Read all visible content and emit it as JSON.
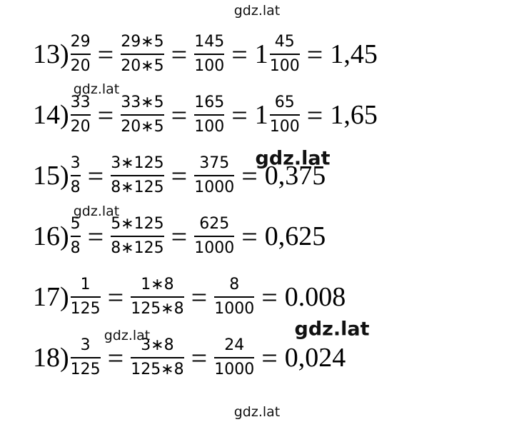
{
  "watermarks": [
    "gdz.lat",
    "gdz.lat",
    "gdz.lat",
    "gdz.lat",
    "gdz.lat",
    "gdz.lat",
    "gdz.lat"
  ],
  "equals": "=",
  "rows": [
    {
      "label": "13)",
      "terms": [
        {
          "num": "29",
          "den": "20"
        },
        {
          "num": "29∗5",
          "den": "20∗5"
        },
        {
          "num": "145",
          "den": "100"
        },
        {
          "whole": "1",
          "num": "45",
          "den": "100"
        },
        {
          "text": "1,45"
        }
      ]
    },
    {
      "label": "14)",
      "terms": [
        {
          "num": "33",
          "den": "20"
        },
        {
          "num": "33∗5",
          "den": "20∗5"
        },
        {
          "num": "165",
          "den": "100"
        },
        {
          "whole": "1",
          "num": "65",
          "den": "100"
        },
        {
          "text": "1,65"
        }
      ]
    },
    {
      "label": "15)",
      "terms": [
        {
          "num": "3",
          "den": "8"
        },
        {
          "num": "3∗125",
          "den": "8∗125"
        },
        {
          "num": "375",
          "den": "1000"
        },
        {
          "text": "0,375"
        }
      ]
    },
    {
      "label": "16)",
      "terms": [
        {
          "num": "5",
          "den": "8"
        },
        {
          "num": "5∗125",
          "den": "8∗125"
        },
        {
          "num": "625",
          "den": "1000"
        },
        {
          "text": "0,625"
        }
      ]
    },
    {
      "label": "17)",
      "terms": [
        {
          "num": "1",
          "den": "125"
        },
        {
          "num": "1∗8",
          "den": "125∗8"
        },
        {
          "num": "8",
          "den": "1000"
        },
        {
          "text": "0.008"
        }
      ]
    },
    {
      "label": "18)",
      "terms": [
        {
          "num": "3",
          "den": "125"
        },
        {
          "num": "3∗8",
          "den": "125∗8"
        },
        {
          "num": "24",
          "den": "1000"
        },
        {
          "text": "0,024"
        }
      ]
    }
  ]
}
